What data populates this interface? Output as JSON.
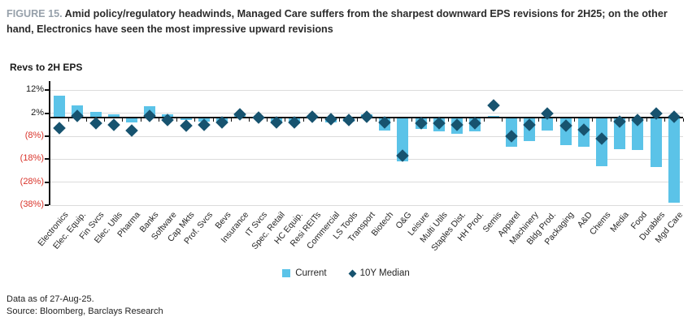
{
  "figure": {
    "label": "FIGURE 15.",
    "title": "Amid policy/regulatory headwinds, Managed Care suffers from the sharpest downward EPS revisions for 2H25; on the other hand, Electronics have seen the most impressive upward revisions",
    "subtitle": "Revs to 2H EPS"
  },
  "legend": [
    {
      "label": "Current",
      "marker": "square",
      "color": "#5bc3e8"
    },
    {
      "label": "10Y Median",
      "marker": "diamond",
      "color": "#17536f"
    }
  ],
  "footer": {
    "line1": "Data as of 27-Aug-25.",
    "line2": "Source: Bloomberg, Barclays Research"
  },
  "colors": {
    "bar": "#5bc3e8",
    "diamond": "#17536f",
    "negative_tick": "#d9342b",
    "gridline": "#dcdcdc",
    "figure_label": "#97a1ab"
  },
  "chart_data": {
    "type": "bar",
    "title": "Revs to 2H EPS",
    "categories": [
      "Electronics",
      "Elec. Equip.",
      "Fin Svcs",
      "Elec. Utils",
      "Pharma",
      "Banks",
      "Software",
      "Cap Mkts",
      "Prof. Svcs",
      "Bevs",
      "Insurance",
      "IT Svcs",
      "Spec. Retail",
      "HC Equip.",
      "Resi REITs",
      "Commercial",
      "LS Tools",
      "Transport",
      "Biotech",
      "O&G",
      "Leisure",
      "Multi Utils",
      "Staples Dist.",
      "HH Prod.",
      "Semis",
      "Apparel",
      "Machinery",
      "Bldg Prod.",
      "Packaging",
      "A&D",
      "Chems",
      "Media",
      "Food",
      "Durables",
      "Mgd Care"
    ],
    "series": [
      {
        "name": "Current",
        "type": "bar",
        "values": [
          9.5,
          5.5,
          2.5,
          1.5,
          -2,
          5,
          1.5,
          -1,
          -1.5,
          -2.5,
          2,
          0.5,
          -2.5,
          -2.5,
          0.5,
          -2,
          -1.5,
          1.5,
          -5.5,
          -19,
          -5,
          -6,
          -7,
          -6,
          1,
          -12.5,
          -10,
          -5.5,
          -12,
          -12.5,
          -21,
          -13.5,
          -14,
          -21.5,
          -37
        ]
      },
      {
        "name": "10Y Median",
        "type": "scatter_diamond",
        "values": [
          -4.5,
          1,
          -2.5,
          -3,
          -5.5,
          1,
          -1,
          -3.5,
          -3,
          -2,
          1.5,
          0,
          -2,
          -2,
          0.5,
          -0.5,
          -1,
          0.5,
          -2,
          -16.5,
          -2.5,
          -2.5,
          -3,
          -2.5,
          5.5,
          -8,
          -3,
          2,
          -3.5,
          -5,
          -9,
          -1.5,
          -1,
          2,
          0.5
        ]
      }
    ],
    "y_ticks": [
      {
        "label": "12%",
        "value": 12
      },
      {
        "label": "2%",
        "value": 2
      },
      {
        "label": "(8%)",
        "value": -8
      },
      {
        "label": "(18%)",
        "value": -18
      },
      {
        "label": "(28%)",
        "value": -28
      },
      {
        "label": "(38%)",
        "value": -38
      }
    ],
    "ylim": [
      -38,
      16
    ],
    "units": "percent",
    "grid": true,
    "legend_position": "bottom"
  }
}
